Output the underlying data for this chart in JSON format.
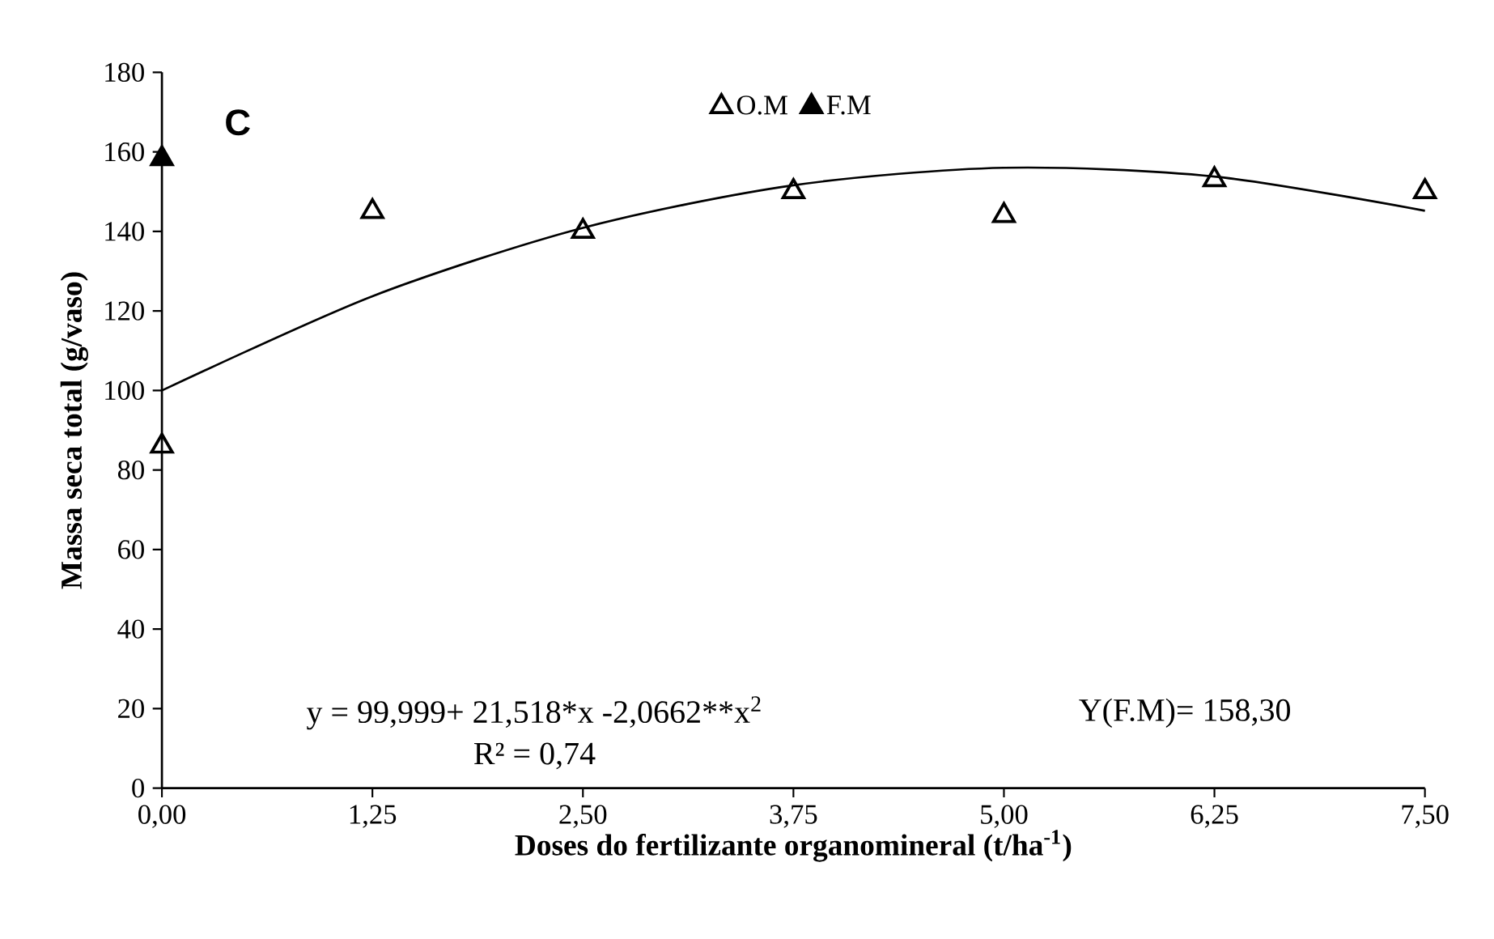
{
  "chart_data": {
    "type": "scatter",
    "xlabel": "Doses do fertilizante organomineral (t/ha$^{-1}$)",
    "ylabel": "Massa seca total (g/vaso)",
    "annotations": [
      "C",
      "y = 99,999+ 21,518*x -2,0662**x$^{2}$",
      "R² = 0,74",
      "Y(F.M)= 158,30"
    ],
    "series": [
      {
        "name": "O.M",
        "color": "#000000",
        "marker": "triangle",
        "x": [
          0,
          1.25,
          2.5,
          3.75,
          5,
          6.25,
          7.5
        ],
        "values": [
          86,
          145,
          140,
          150,
          144,
          153,
          150
        ]
      },
      {
        "name": "F.M",
        "color": "#000000",
        "marker": "triangle",
        "x": [
          0
        ],
        "values": [
          158.3
        ]
      },
      {
        "type": "line",
        "color": "#000000",
        "marker": "none",
        "line_style": "solid",
        "x": [
          0,
          1.25,
          2.5,
          3.75,
          5,
          6.25,
          7.5
        ],
        "values": [
          100,
          123.7,
          140.9,
          151.6,
          156.0,
          153.8,
          145.2
        ]
      }
    ],
    "xlim": [
      0,
      7.5
    ],
    "xticks": [
      {
        "value": 0,
        "label": "0,00"
      },
      {
        "value": 1.25,
        "label": "1,25"
      },
      {
        "value": 2.5,
        "label": "2,50"
      },
      {
        "value": 3.75,
        "label": "3,75"
      },
      {
        "value": 5,
        "label": "5,00"
      },
      {
        "value": 6.25,
        "label": "6,25"
      },
      {
        "value": 7.5,
        "label": "7,50"
      }
    ],
    "ylim": [
      0,
      180
    ],
    "yticks": [
      0,
      20,
      40,
      60,
      80,
      100,
      120,
      140,
      160,
      180
    ],
    "grid": false,
    "legend": "top"
  }
}
